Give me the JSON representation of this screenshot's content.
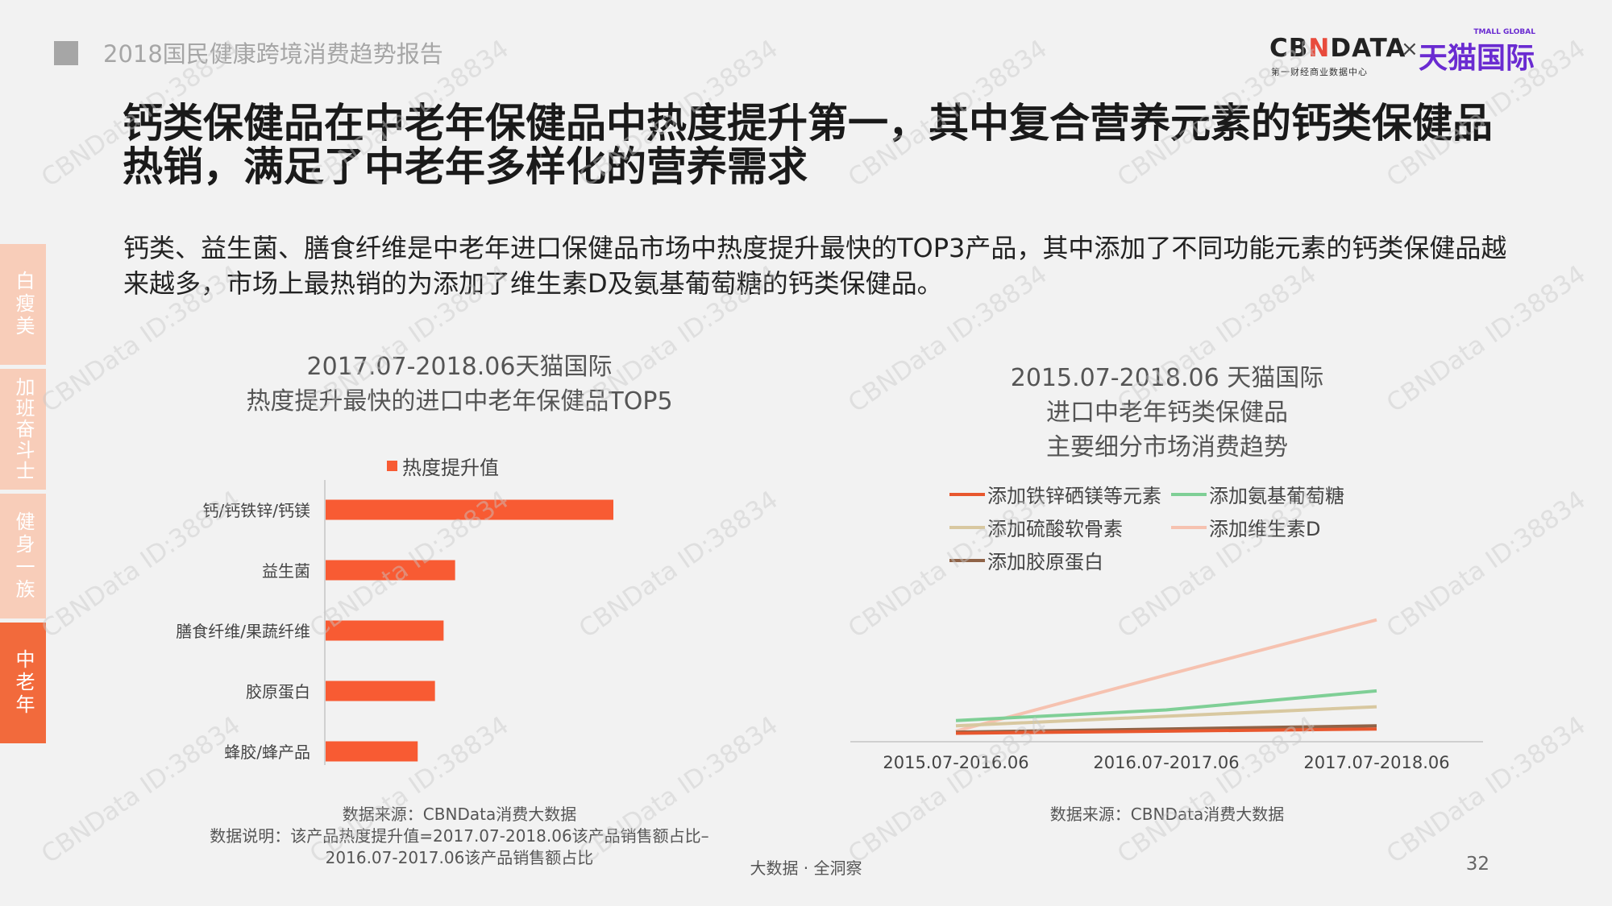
{
  "header": {
    "report_title": "2018国民健康跨境消费趋势报告",
    "logo": {
      "cbn_prefix": "CB",
      "cbn_mid": "N",
      "cbn_suffix": "DATA",
      "cbn_sub": "第一财经商业数据中心",
      "times": "×",
      "tmall": "天猫国际",
      "tmall_en": "TMALL GLOBAL"
    }
  },
  "title": "钙类保健品在中老年保健品中热度提升第一，其中复合营养元素的钙类保健品热销，满足了中老年多样化的营养需求",
  "description": "钙类、益生菌、膳食纤维是中老年进口保健品市场中热度提升最快的TOP3产品，其中添加了不同功能元素的钙类保健品越来越多，市场上最热销的为添加了维生素D及氨基葡萄糖的钙类保健品。",
  "side_tabs": [
    {
      "label": "白瘦美",
      "active": false
    },
    {
      "label": "加班奋斗士",
      "active": false
    },
    {
      "label": "健身一族",
      "active": false
    },
    {
      "label": "中老年",
      "active": true
    }
  ],
  "colors": {
    "accent": "#f26a3c",
    "tab_inactive": "#f8cdb9",
    "bar": "#f85b33"
  },
  "chart_data": [
    {
      "type": "bar",
      "orientation": "horizontal",
      "title_lines": [
        "2017.07-2018.06天猫国际",
        "热度提升最快的进口中老年保健品TOP5"
      ],
      "categories": [
        "钙/钙铁锌/钙镁",
        "益生菌",
        "膳食纤维/果蔬纤维",
        "胶原蛋白",
        "蜂胶/蜂产品"
      ],
      "series": [
        {
          "name": "热度提升值",
          "color": "#f85b33",
          "values": [
            100,
            45,
            41,
            38,
            32
          ]
        }
      ],
      "grid": false,
      "legend_position": "top"
    },
    {
      "type": "line",
      "title_lines": [
        "2015.07-2018.06 天猫国际",
        "进口中老年钙类保健品",
        "主要细分市场消费趋势"
      ],
      "x": [
        "2015.07-2016.06",
        "2016.07-2017.06",
        "2017.07-2018.06"
      ],
      "series": [
        {
          "name": "添加铁锌硒镁等元素",
          "color": "#e8572e",
          "values": [
            8,
            10,
            12
          ]
        },
        {
          "name": "添加氨基葡萄糖",
          "color": "#7fcf96",
          "values": [
            20,
            30,
            48
          ]
        },
        {
          "name": "添加硫酸软骨素",
          "color": "#d8c8a0",
          "values": [
            15,
            24,
            33
          ]
        },
        {
          "name": "添加维生素D",
          "color": "#f6c2b0",
          "values": [
            10,
            63,
            115
          ]
        },
        {
          "name": "添加胶原蛋白",
          "color": "#8f6347",
          "values": [
            9,
            12,
            15
          ]
        }
      ],
      "ylim": [
        0,
        130
      ],
      "grid": false,
      "legend_position": "top"
    }
  ],
  "notes": {
    "left_source": "数据来源：CBNData消费大数据",
    "left_explain_1": "数据说明：该产品热度提升值=2017.07-2018.06该产品销售额占比–",
    "left_explain_2": "2016.07-2017.06该产品销售额占比",
    "right_source": "数据来源：CBNData消费大数据"
  },
  "footer": {
    "slogan": "大数据 · 全洞察",
    "page": "32"
  },
  "watermark": "CBNData ID:38834"
}
